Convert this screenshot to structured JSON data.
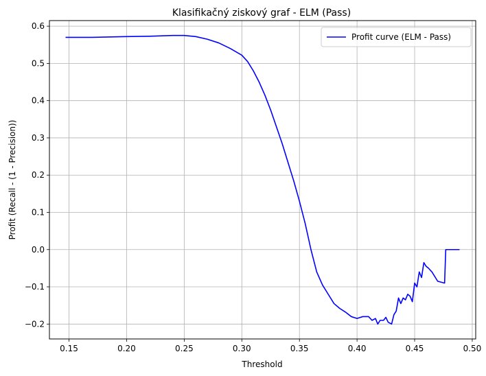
{
  "chart_data": {
    "type": "line",
    "title": "Klasifikačný ziskový graf - ELM (Pass)",
    "xlabel": "Threshold",
    "ylabel": "Profit (Recall - (1 - Precision))",
    "xlim": [
      0.133,
      0.503
    ],
    "ylim": [
      -0.24,
      0.615
    ],
    "xticks": [
      0.15,
      0.2,
      0.25,
      0.3,
      0.35,
      0.4,
      0.45,
      0.5
    ],
    "xtick_labels": [
      "0.15",
      "0.20",
      "0.25",
      "0.30",
      "0.35",
      "0.40",
      "0.45",
      "0.50"
    ],
    "yticks": [
      -0.2,
      -0.1,
      0.0,
      0.1,
      0.2,
      0.3,
      0.4,
      0.5,
      0.6
    ],
    "ytick_labels": [
      "−0.2",
      "−0.1",
      "0.0",
      "0.1",
      "0.2",
      "0.3",
      "0.4",
      "0.5",
      "0.6"
    ],
    "grid": true,
    "legend_position": "upper-right",
    "series": [
      {
        "name": "Profit curve (ELM - Pass)",
        "color": "#0000ff",
        "x": [
          0.147,
          0.17,
          0.2,
          0.22,
          0.24,
          0.25,
          0.26,
          0.27,
          0.28,
          0.29,
          0.3,
          0.305,
          0.31,
          0.315,
          0.32,
          0.325,
          0.33,
          0.335,
          0.34,
          0.345,
          0.35,
          0.355,
          0.36,
          0.365,
          0.37,
          0.375,
          0.38,
          0.385,
          0.39,
          0.395,
          0.4,
          0.405,
          0.41,
          0.413,
          0.416,
          0.418,
          0.42,
          0.423,
          0.425,
          0.427,
          0.43,
          0.432,
          0.434,
          0.436,
          0.438,
          0.44,
          0.442,
          0.444,
          0.446,
          0.448,
          0.45,
          0.452,
          0.454,
          0.456,
          0.458,
          0.46,
          0.462,
          0.465,
          0.47,
          0.476,
          0.477,
          0.483,
          0.489
        ],
        "y": [
          0.57,
          0.57,
          0.572,
          0.573,
          0.575,
          0.575,
          0.572,
          0.565,
          0.555,
          0.54,
          0.522,
          0.505,
          0.48,
          0.45,
          0.415,
          0.375,
          0.33,
          0.285,
          0.235,
          0.185,
          0.13,
          0.07,
          0.0,
          -0.06,
          -0.095,
          -0.12,
          -0.145,
          -0.158,
          -0.168,
          -0.18,
          -0.185,
          -0.18,
          -0.18,
          -0.19,
          -0.185,
          -0.2,
          -0.19,
          -0.19,
          -0.182,
          -0.195,
          -0.2,
          -0.175,
          -0.165,
          -0.13,
          -0.145,
          -0.13,
          -0.135,
          -0.12,
          -0.125,
          -0.14,
          -0.09,
          -0.1,
          -0.06,
          -0.075,
          -0.035,
          -0.045,
          -0.05,
          -0.06,
          -0.085,
          -0.09,
          0.0,
          0.0,
          0.0
        ]
      }
    ]
  }
}
